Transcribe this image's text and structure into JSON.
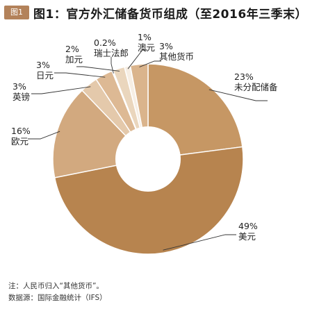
{
  "header": {
    "badge": "图1",
    "title": "图1：官方外汇储备货币组成（至2016年三季末）"
  },
  "chart_data": {
    "type": "pie",
    "style": "donut",
    "slices": [
      {
        "label": "未分配储备",
        "value": 23,
        "pct_text": "23%",
        "color": "#c69764"
      },
      {
        "label": "美元",
        "value": 49,
        "pct_text": "49%",
        "color": "#b7844f"
      },
      {
        "label": "欧元",
        "value": 16,
        "pct_text": "16%",
        "color": "#d2a97f"
      },
      {
        "label": "英镑",
        "value": 3,
        "pct_text": "3%",
        "color": "#e4c9ab"
      },
      {
        "label": "日元",
        "value": 3,
        "pct_text": "3%",
        "color": "#ddb994"
      },
      {
        "label": "瑞士法郎",
        "value": 0.2,
        "pct_text": "0.2%",
        "color": "#f2e4d4"
      },
      {
        "label": "加元",
        "value": 2,
        "pct_text": "2%",
        "color": "#ead6bd"
      },
      {
        "label": "澳元",
        "value": 1,
        "pct_text": "1%",
        "color": "#f6eee4"
      },
      {
        "label": "其他货币",
        "value": 3,
        "pct_text": "3%",
        "color": "#dab48c"
      }
    ]
  },
  "notes": {
    "note": "注：人民币归入“其他货币”。",
    "source": "数据源：国际金融统计（IFS）"
  }
}
